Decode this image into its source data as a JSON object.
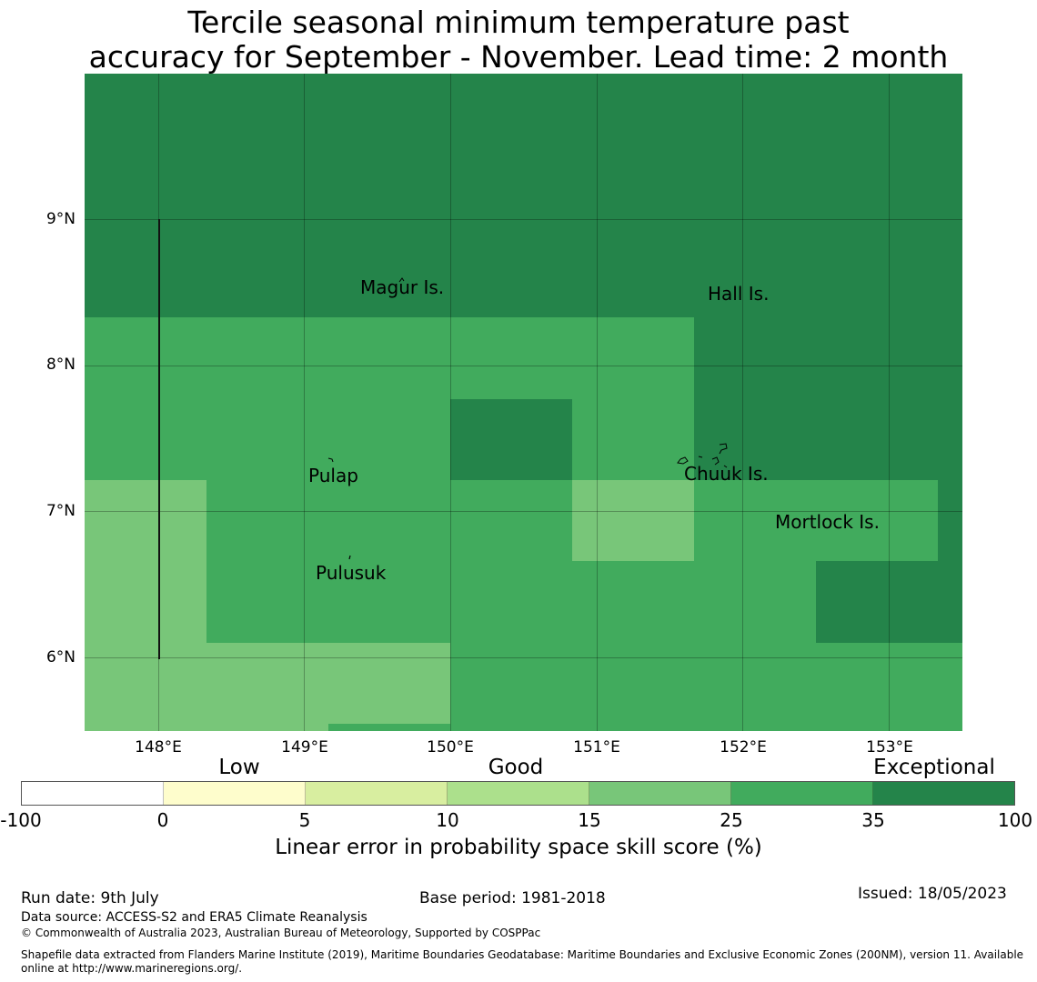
{
  "title": {
    "line1": "Tercile seasonal minimum temperature past",
    "line2": "accuracy for September - November. Lead time: 2 month"
  },
  "map": {
    "lat_labels": [
      "9°N",
      "8°N",
      "7°N",
      "6°N"
    ],
    "lon_labels": [
      "148°E",
      "149°E",
      "150°E",
      "151°E",
      "152°E",
      "153°E"
    ],
    "places": [
      "Magur Is.",
      "Hall Is.",
      "Pulap",
      "Chuuk Is.",
      "Mortlock Is.",
      "Pulusuk"
    ]
  },
  "colorbar": {
    "ticks": [
      "-100",
      "0",
      "5",
      "10",
      "15",
      "25",
      "35",
      "100"
    ],
    "categories": [
      "Low",
      "Good",
      "Exceptional"
    ],
    "colors": [
      "#ffffff",
      "#fefdcc",
      "#d8eea0",
      "#ace08c",
      "#78c679",
      "#41ab5d",
      "#24844a"
    ],
    "label": "Linear error in probability space skill score (%)"
  },
  "footer": {
    "run_date": "Run date: 9th July",
    "base_period": "Base period: 1981-2018",
    "issued": "Issued: 18/05/2023",
    "data_source": "Data source: ACCESS-S2 and ERA5 Climate Reanalysis",
    "copyright": "© Commonwealth of Australia 2023, Australian Bureau of Meteorology, Supported by COSPPac",
    "shapefile_line1": "Shapefile data extracted from Flanders Marine Institute (2019), Maritime Boundaries Geodatabase: Maritime Boundaries and Exclusive Economic Zones (200NM), version 11. Available",
    "shapefile_line2": "online at http://www.marineregions.org/."
  }
}
